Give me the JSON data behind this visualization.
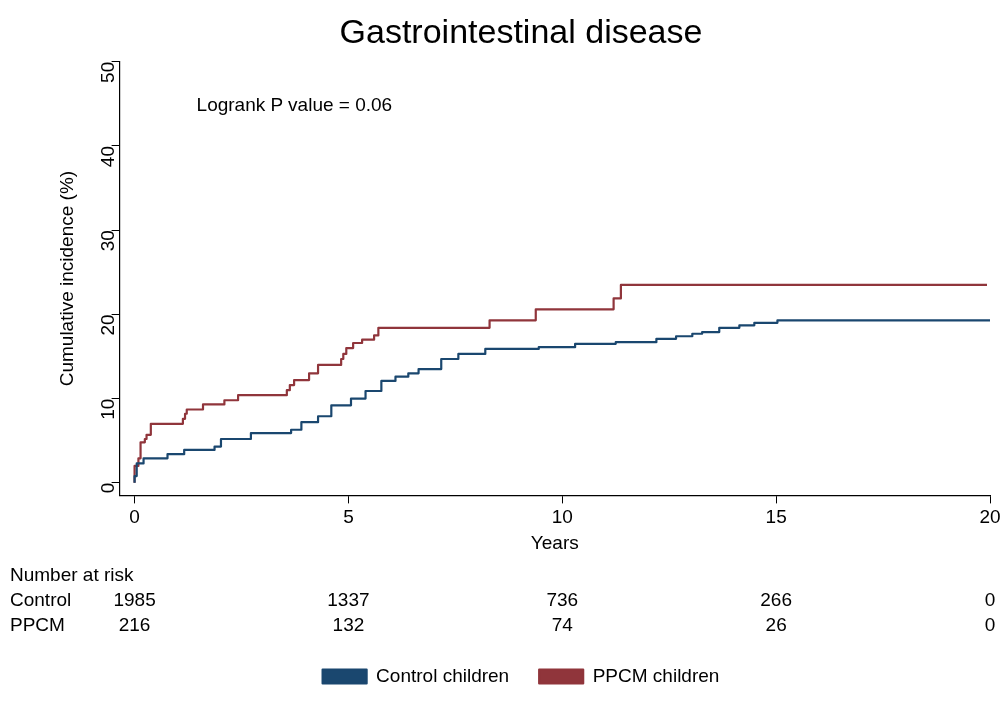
{
  "chart_data": {
    "type": "step",
    "title": "Gastrointestinal disease",
    "xlabel": "Years",
    "ylabel": "Cumulative incidence (%)",
    "xlim": [
      -0.35,
      20
    ],
    "xticks": [
      0,
      5,
      10,
      15,
      20
    ],
    "ylim": [
      -1.5,
      50
    ],
    "yticks": [
      0,
      10,
      20,
      30,
      40,
      50
    ],
    "grid": false,
    "legend": "bottom",
    "marker": "none",
    "line_style": "solid",
    "series": [
      {
        "name": "Control children",
        "color": "#1a476f",
        "x": [
          0,
          0.05,
          0.21,
          0.77,
          1.16,
          1.87,
          2.02,
          2.72,
          3.66,
          3.9,
          4.29,
          4.6,
          5.06,
          5.4,
          5.77,
          6.1,
          6.4,
          6.64,
          7.17,
          7.57,
          8.2,
          9.45,
          10.3,
          11.25,
          12.2,
          12.66,
          13.04,
          13.27,
          13.67,
          14.14,
          14.49,
          15.03,
          15.19,
          20
        ],
        "values": [
          0,
          0.8,
          2.3,
          2.9,
          3.4,
          3.9,
          4.3,
          5.2,
          5.9,
          6.3,
          7.2,
          7.9,
          9.2,
          10,
          10.9,
          12.1,
          12.6,
          13,
          13.5,
          14.7,
          15.3,
          15.9,
          16.1,
          16.5,
          16.7,
          17.1,
          17.4,
          17.7,
          17.9,
          18.4,
          18.7,
          19,
          19.3,
          19.3
        ]
      },
      {
        "name": "PPCM children",
        "color": "#90353b",
        "x": [
          0,
          0.09,
          0.14,
          0.24,
          0.28,
          0.38,
          1.13,
          1.18,
          1.22,
          1.6,
          2.1,
          2.42,
          3.56,
          3.63,
          3.73,
          4.08,
          4.29,
          4.83,
          4.88,
          4.95,
          5.11,
          5.32,
          5.6,
          5.7,
          8.3,
          9.38,
          11.2,
          11.37,
          12.36,
          19.93
        ],
        "values": [
          0,
          2,
          2.9,
          4.8,
          5.2,
          5.7,
          7,
          7.6,
          8.2,
          8.7,
          9.3,
          9.8,
          10.4,
          11,
          11.6,
          12.2,
          13,
          14,
          14.7,
          15.3,
          16,
          16.6,
          17,
          17.5,
          18.4,
          19.3,
          20.6,
          21.9,
          23.5,
          23.5
        ]
      }
    ],
    "annotations": [
      "Logrank P value = 0.06",
      "Number at risk",
      "Control",
      "1985",
      "1337",
      "736",
      "266",
      "0",
      "PPCM",
      "216",
      "132",
      "74",
      "26",
      "0"
    ]
  }
}
